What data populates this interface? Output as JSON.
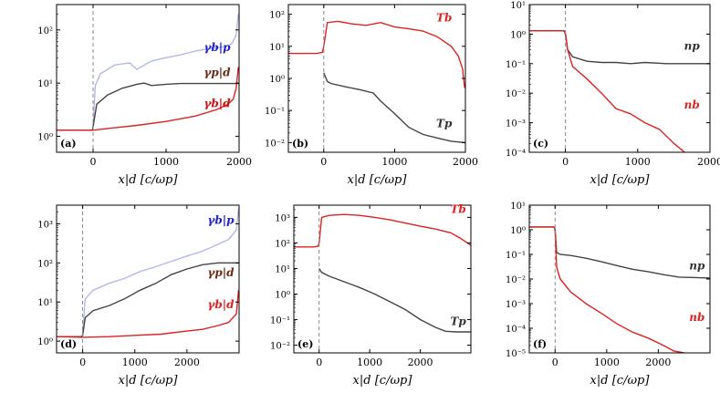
{
  "chart_data": [
    {
      "type": "line",
      "panel_label": "(a)",
      "xlabel": "x|d [c/ωp]",
      "xlim": [
        -500,
        2000
      ],
      "x_ticks": [
        0,
        1000,
        2000
      ],
      "y_log": true,
      "ylim": [
        0.5,
        300
      ],
      "y_ticks": [
        1,
        10,
        100
      ],
      "y_tick_labels": [
        "10⁰",
        "10¹",
        "10²"
      ],
      "grid": false,
      "vline_x": 0,
      "series": [
        {
          "name": "γb|p",
          "color": "#b3b8ea",
          "label_color": "#2020d0",
          "label_x": 1700,
          "label_y": 40,
          "x": [
            -500,
            -10,
            0,
            30,
            100,
            300,
            500,
            600,
            800,
            1000,
            1200,
            1400,
            1600,
            1800,
            1900,
            1960,
            1990
          ],
          "y": [
            1.3,
            1.3,
            1.5,
            9,
            15,
            22,
            24,
            18,
            26,
            30,
            34,
            40,
            45,
            48,
            55,
            80,
            200
          ]
        },
        {
          "name": "γp|d",
          "color": "#444444",
          "label_color": "#6b2a12",
          "label_x": 1700,
          "label_y": 13.5,
          "x": [
            -500,
            -10,
            0,
            50,
            200,
            400,
            600,
            700,
            800,
            1000,
            1200,
            1500,
            1800,
            2000
          ],
          "y": [
            1.3,
            1.3,
            1.5,
            4,
            6,
            8,
            9.5,
            10,
            9,
            9.5,
            9.8,
            9.8,
            9.8,
            9.8
          ]
        },
        {
          "name": "γb|d",
          "color": "#dd2222",
          "label_color": "#cc1111",
          "label_x": 1700,
          "label_y": 3.5,
          "x": [
            -500,
            0,
            200,
            600,
            1000,
            1400,
            1700,
            1850,
            1920,
            1960,
            1990
          ],
          "y": [
            1.3,
            1.3,
            1.4,
            1.6,
            1.9,
            2.4,
            3.2,
            4,
            5,
            8,
            20
          ]
        }
      ]
    },
    {
      "type": "line",
      "panel_label": "(b)",
      "xlabel": "x|d [c/ωp]",
      "xlim": [
        -500,
        2000
      ],
      "x_ticks": [
        0,
        1000,
        2000
      ],
      "y_log": true,
      "ylim": [
        0.005,
        200
      ],
      "y_ticks": [
        0.01,
        0.1,
        1,
        10,
        100
      ],
      "y_tick_labels": [
        "10⁻²",
        "10⁻¹",
        "10⁰",
        "10¹",
        "10²"
      ],
      "grid": false,
      "vline_x": 0,
      "series": [
        {
          "name": "Tb",
          "color": "#dd2222",
          "label_color": "#dd2222",
          "label_x": 1700,
          "label_y": 60,
          "x": [
            -500,
            -100,
            -20,
            0,
            50,
            200,
            400,
            600,
            800,
            1000,
            1200,
            1400,
            1600,
            1800,
            1900,
            1960,
            1990
          ],
          "y": [
            6,
            6,
            6.5,
            10,
            55,
            60,
            50,
            45,
            55,
            40,
            35,
            30,
            20,
            10,
            5,
            2,
            0.5
          ]
        },
        {
          "name": "Tp",
          "color": "#444444",
          "label_color": "#333333",
          "label_x": 1700,
          "label_y": 0.03,
          "x": [
            0,
            50,
            100,
            300,
            500,
            700,
            800,
            1000,
            1200,
            1400,
            1600,
            1800,
            2000
          ],
          "y": [
            1.5,
            0.8,
            0.7,
            0.55,
            0.45,
            0.35,
            0.2,
            0.08,
            0.03,
            0.018,
            0.014,
            0.011,
            0.01
          ]
        }
      ]
    },
    {
      "type": "line",
      "panel_label": "(c)",
      "xlabel": "x|d [c/ωp]",
      "xlim": [
        -500,
        2000
      ],
      "x_ticks": [
        0,
        1000,
        2000
      ],
      "y_log": true,
      "ylim": [
        0.0001,
        10
      ],
      "y_ticks": [
        0.0001,
        0.001,
        0.01,
        0.1,
        1,
        10
      ],
      "y_tick_labels": [
        "10⁻⁴",
        "10⁻³",
        "10⁻²",
        "10⁻¹",
        "10⁰",
        "10¹"
      ],
      "grid": false,
      "vline_x": 0,
      "series": [
        {
          "name": "np",
          "color": "#444444",
          "label_color": "#333333",
          "label_x": 1750,
          "label_y": 0.3,
          "x": [
            -500,
            -20,
            0,
            30,
            100,
            300,
            500,
            700,
            900,
            1100,
            1400,
            1700,
            2000
          ],
          "y": [
            1.3,
            1.3,
            1.0,
            0.3,
            0.17,
            0.12,
            0.11,
            0.11,
            0.1,
            0.11,
            0.1,
            0.1,
            0.1
          ]
        },
        {
          "name": "nb",
          "color": "#dd2222",
          "label_color": "#dd2222",
          "label_x": 1750,
          "label_y": 0.003,
          "x": [
            -500,
            -20,
            0,
            30,
            100,
            300,
            500,
            700,
            900,
            1100,
            1300,
            1500,
            1650
          ],
          "y": [
            1.3,
            1.3,
            1.1,
            0.3,
            0.08,
            0.03,
            0.01,
            0.003,
            0.002,
            0.001,
            0.0006,
            0.0002,
            0.0001
          ]
        }
      ]
    },
    {
      "type": "line",
      "panel_label": "(d)",
      "xlabel": "x|d [c/ωp]",
      "xlim": [
        -500,
        3000
      ],
      "x_ticks": [
        0,
        1000,
        2000
      ],
      "y_log": true,
      "ylim": [
        0.5,
        3000
      ],
      "y_ticks": [
        1,
        10,
        100,
        1000
      ],
      "y_tick_labels": [
        "10⁰",
        "10¹",
        "10²",
        "10³"
      ],
      "grid": false,
      "vline_x": 0,
      "series": [
        {
          "name": "γb|p",
          "color": "#b3b8ea",
          "label_color": "#2020d0",
          "label_x": 2650,
          "label_y": 1000,
          "x": [
            -500,
            -20,
            0,
            50,
            200,
            500,
            800,
            1100,
            1400,
            1700,
            2000,
            2300,
            2600,
            2800,
            2950,
            2990
          ],
          "y": [
            1.3,
            1.3,
            1.5,
            12,
            20,
            30,
            40,
            60,
            80,
            110,
            150,
            200,
            300,
            400,
            700,
            2500
          ]
        },
        {
          "name": "γp|d",
          "color": "#444444",
          "label_color": "#6b2a12",
          "label_x": 2650,
          "label_y": 45,
          "x": [
            -500,
            -20,
            0,
            50,
            200,
            500,
            800,
            1100,
            1400,
            1700,
            2000,
            2300,
            2600,
            3000
          ],
          "y": [
            1.3,
            1.3,
            1.4,
            4,
            6,
            8,
            12,
            20,
            30,
            50,
            70,
            90,
            100,
            100
          ]
        },
        {
          "name": "γb|d",
          "color": "#dd2222",
          "label_color": "#dd2222",
          "label_x": 2650,
          "label_y": 7,
          "x": [
            -500,
            0,
            500,
            1000,
            1500,
            2000,
            2300,
            2600,
            2800,
            2950,
            2990
          ],
          "y": [
            1.3,
            1.25,
            1.3,
            1.4,
            1.5,
            1.8,
            2,
            2.5,
            3,
            5,
            20
          ]
        }
      ]
    },
    {
      "type": "line",
      "panel_label": "(e)",
      "xlabel": "x|d [c/ωp]",
      "xlim": [
        -500,
        3000
      ],
      "x_ticks": [
        0,
        1000,
        2000
      ],
      "y_log": true,
      "ylim": [
        0.005,
        3000
      ],
      "y_ticks": [
        0.01,
        0.1,
        1,
        10,
        100,
        1000
      ],
      "y_tick_labels": [
        "10⁻²",
        "10⁻¹",
        "10⁰",
        "10¹",
        "10²",
        "10³"
      ],
      "grid": false,
      "vline_x": 0,
      "series": [
        {
          "name": "Tb",
          "color": "#dd2222",
          "label_color": "#dd2222",
          "label_x": 2750,
          "label_y": 1500,
          "x": [
            -500,
            -100,
            -20,
            0,
            50,
            200,
            500,
            800,
            1100,
            1400,
            1700,
            2000,
            2300,
            2600,
            2800,
            3000
          ],
          "y": [
            70,
            70,
            75,
            100,
            1000,
            1200,
            1300,
            1200,
            1000,
            800,
            600,
            450,
            350,
            250,
            150,
            80
          ]
        },
        {
          "name": "Tp",
          "color": "#444444",
          "label_color": "#333333",
          "label_x": 2750,
          "label_y": 0.06,
          "x": [
            0,
            50,
            200,
            500,
            800,
            1100,
            1400,
            1700,
            2000,
            2300,
            2500,
            2700,
            3000
          ],
          "y": [
            10,
            7,
            5,
            3,
            1.8,
            1,
            0.5,
            0.25,
            0.1,
            0.05,
            0.035,
            0.033,
            0.033
          ]
        }
      ]
    },
    {
      "type": "line",
      "panel_label": "(f)",
      "xlabel": "x|d [c/ωp]",
      "xlim": [
        -500,
        3000
      ],
      "x_ticks": [
        0,
        1000,
        2000
      ],
      "y_log": true,
      "ylim": [
        1e-05,
        10
      ],
      "y_ticks": [
        1e-05,
        0.0001,
        0.001,
        0.01,
        0.1,
        1,
        10
      ],
      "y_tick_labels": [
        "10⁻⁵",
        "10⁻⁴",
        "10⁻³",
        "10⁻²",
        "10⁻¹",
        "10⁰",
        "10¹"
      ],
      "grid": false,
      "vline_x": 0,
      "series": [
        {
          "name": "np",
          "color": "#444444",
          "label_color": "#333333",
          "label_x": 2750,
          "label_y": 0.025,
          "x": [
            -500,
            -20,
            0,
            30,
            100,
            300,
            600,
            900,
            1200,
            1500,
            1800,
            2100,
            2400,
            3000
          ],
          "y": [
            1.3,
            1.3,
            1.0,
            0.12,
            0.1,
            0.09,
            0.07,
            0.05,
            0.035,
            0.025,
            0.02,
            0.015,
            0.012,
            0.011
          ]
        },
        {
          "name": "nb",
          "color": "#dd2222",
          "label_color": "#dd2222",
          "label_x": 2750,
          "label_y": 0.0002,
          "x": [
            -500,
            -20,
            0,
            30,
            100,
            300,
            600,
            900,
            1200,
            1500,
            1800,
            2100,
            2300,
            2500
          ],
          "y": [
            1.3,
            1.3,
            1.0,
            0.03,
            0.01,
            0.003,
            0.001,
            0.0004,
            0.00015,
            7e-05,
            4e-05,
            2e-05,
            1.2e-05,
            1e-05
          ]
        }
      ]
    }
  ]
}
